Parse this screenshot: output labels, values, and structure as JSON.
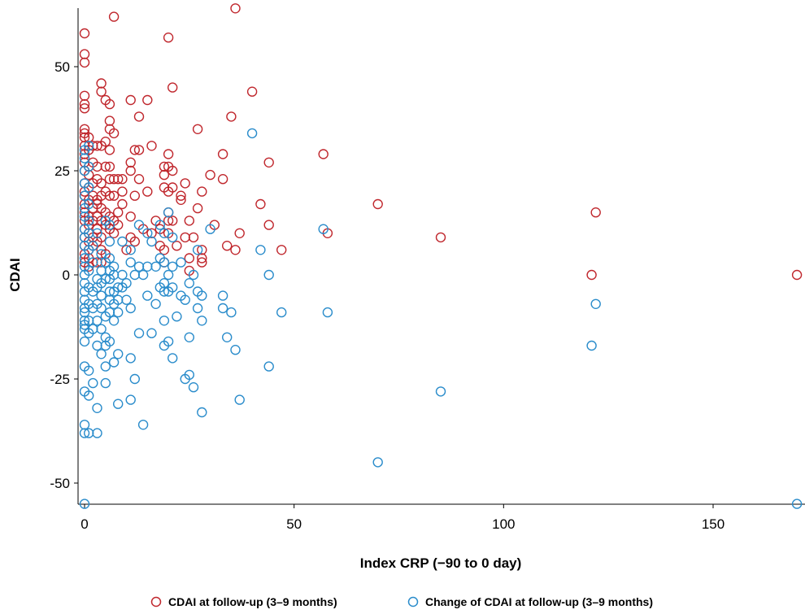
{
  "chart_data": {
    "type": "scatter",
    "title": "",
    "xlabel": "Index CRP  (−90 to 0 day)",
    "ylabel": "CDAI",
    "xlim": [
      -1,
      171
    ],
    "ylim": [
      -58,
      66
    ],
    "x_ticks": [
      0,
      50,
      100,
      150
    ],
    "y_ticks": [
      -50,
      -25,
      0,
      25,
      50
    ],
    "x_tick_labels": [
      "0",
      "50",
      "100",
      "150"
    ],
    "y_tick_labels": [
      "-50",
      "-25",
      "0",
      "25",
      "50"
    ],
    "grid": false,
    "legend_position": "bottom",
    "series": [
      {
        "name": "CDAI at follow-up (3–9 months)",
        "color": "#c0272d",
        "marker": "open-circle",
        "points": [
          [
            0,
            58
          ],
          [
            0,
            53
          ],
          [
            0,
            51
          ],
          [
            0,
            43
          ],
          [
            0,
            41
          ],
          [
            0,
            40
          ],
          [
            0,
            35
          ],
          [
            0,
            34
          ],
          [
            0,
            33
          ],
          [
            0,
            31
          ],
          [
            0,
            29
          ],
          [
            0,
            27
          ],
          [
            0,
            25
          ],
          [
            0,
            22
          ],
          [
            0,
            20
          ],
          [
            0,
            19
          ],
          [
            0,
            17
          ],
          [
            0,
            15
          ],
          [
            0,
            13
          ],
          [
            0,
            11
          ],
          [
            0,
            9
          ],
          [
            0,
            7
          ],
          [
            0,
            5
          ],
          [
            0,
            3
          ],
          [
            1,
            33
          ],
          [
            1,
            30
          ],
          [
            1,
            26
          ],
          [
            1,
            24
          ],
          [
            1,
            21
          ],
          [
            1,
            18
          ],
          [
            1,
            14
          ],
          [
            1,
            12
          ],
          [
            1,
            10
          ],
          [
            1,
            8
          ],
          [
            1,
            6
          ],
          [
            1,
            4
          ],
          [
            1,
            2
          ],
          [
            2,
            31
          ],
          [
            2,
            27
          ],
          [
            2,
            22
          ],
          [
            2,
            19
          ],
          [
            2,
            16
          ],
          [
            2,
            13
          ],
          [
            2,
            9
          ],
          [
            2,
            7
          ],
          [
            3,
            31
          ],
          [
            3,
            26
          ],
          [
            3,
            23
          ],
          [
            3,
            18
          ],
          [
            3,
            17
          ],
          [
            3,
            14
          ],
          [
            3,
            11
          ],
          [
            3,
            8
          ],
          [
            3,
            3
          ],
          [
            4,
            46
          ],
          [
            4,
            44
          ],
          [
            4,
            31
          ],
          [
            4,
            22
          ],
          [
            4,
            19
          ],
          [
            4,
            16
          ],
          [
            4,
            13
          ],
          [
            4,
            9
          ],
          [
            4,
            6
          ],
          [
            4,
            3
          ],
          [
            5,
            42
          ],
          [
            5,
            32
          ],
          [
            5,
            26
          ],
          [
            5,
            20
          ],
          [
            5,
            15
          ],
          [
            5,
            12
          ],
          [
            5,
            5
          ],
          [
            6,
            41
          ],
          [
            6,
            37
          ],
          [
            6,
            35
          ],
          [
            6,
            30
          ],
          [
            6,
            26
          ],
          [
            6,
            23
          ],
          [
            6,
            19
          ],
          [
            6,
            14
          ],
          [
            6,
            11
          ],
          [
            7,
            62
          ],
          [
            7,
            34
          ],
          [
            7,
            23
          ],
          [
            7,
            19
          ],
          [
            7,
            13
          ],
          [
            7,
            10
          ],
          [
            8,
            23
          ],
          [
            8,
            15
          ],
          [
            8,
            12
          ],
          [
            9,
            23
          ],
          [
            9,
            20
          ],
          [
            9,
            17
          ],
          [
            10,
            6
          ],
          [
            11,
            9
          ],
          [
            11,
            14
          ],
          [
            11,
            25
          ],
          [
            11,
            27
          ],
          [
            11,
            42
          ],
          [
            12,
            30
          ],
          [
            12,
            19
          ],
          [
            12,
            8
          ],
          [
            13,
            38
          ],
          [
            13,
            30
          ],
          [
            13,
            23
          ],
          [
            14,
            11
          ],
          [
            15,
            42
          ],
          [
            15,
            20
          ],
          [
            16,
            31
          ],
          [
            16,
            10
          ],
          [
            17,
            13
          ],
          [
            18,
            11
          ],
          [
            18,
            7
          ],
          [
            19,
            26
          ],
          [
            19,
            24
          ],
          [
            19,
            21
          ],
          [
            19,
            6
          ],
          [
            19,
            3
          ],
          [
            20,
            57
          ],
          [
            20,
            29
          ],
          [
            20,
            26
          ],
          [
            20,
            20
          ],
          [
            20,
            15
          ],
          [
            20,
            13
          ],
          [
            20,
            10
          ],
          [
            21,
            45
          ],
          [
            21,
            25
          ],
          [
            21,
            21
          ],
          [
            21,
            13
          ],
          [
            22,
            7
          ],
          [
            23,
            19
          ],
          [
            23,
            18
          ],
          [
            24,
            22
          ],
          [
            24,
            9
          ],
          [
            25,
            13
          ],
          [
            25,
            4
          ],
          [
            25,
            1
          ],
          [
            26,
            9
          ],
          [
            27,
            35
          ],
          [
            27,
            16
          ],
          [
            28,
            20
          ],
          [
            28,
            6
          ],
          [
            28,
            4
          ],
          [
            28,
            3
          ],
          [
            30,
            24
          ],
          [
            31,
            12
          ],
          [
            33,
            29
          ],
          [
            33,
            23
          ],
          [
            34,
            7
          ],
          [
            35,
            38
          ],
          [
            36,
            64
          ],
          [
            36,
            6
          ],
          [
            37,
            10
          ],
          [
            40,
            44
          ],
          [
            42,
            17
          ],
          [
            44,
            27
          ],
          [
            44,
            12
          ],
          [
            47,
            6
          ],
          [
            57,
            29
          ],
          [
            58,
            10
          ],
          [
            70,
            17
          ],
          [
            85,
            9
          ],
          [
            121,
            0
          ],
          [
            122,
            15
          ],
          [
            170,
            0
          ]
        ]
      },
      {
        "name": "Change of CDAI at follow-up (3–9 months)",
        "color": "#2a8ccb",
        "marker": "open-circle",
        "points": [
          [
            0,
            -55
          ],
          [
            0,
            -38
          ],
          [
            0,
            -36
          ],
          [
            0,
            -28
          ],
          [
            0,
            -22
          ],
          [
            0,
            -16
          ],
          [
            0,
            -13
          ],
          [
            0,
            -12
          ],
          [
            0,
            -11
          ],
          [
            0,
            -9
          ],
          [
            0,
            -8
          ],
          [
            0,
            -6
          ],
          [
            0,
            -4
          ],
          [
            0,
            -2
          ],
          [
            0,
            0
          ],
          [
            0,
            2
          ],
          [
            0,
            4
          ],
          [
            0,
            7
          ],
          [
            0,
            9
          ],
          [
            0,
            11
          ],
          [
            0,
            14
          ],
          [
            0,
            16
          ],
          [
            0,
            19
          ],
          [
            0,
            22
          ],
          [
            0,
            25
          ],
          [
            0,
            28
          ],
          [
            0,
            30
          ],
          [
            1,
            -38
          ],
          [
            1,
            -29
          ],
          [
            1,
            -23
          ],
          [
            1,
            -14
          ],
          [
            1,
            -11
          ],
          [
            1,
            -7
          ],
          [
            1,
            -3
          ],
          [
            1,
            1
          ],
          [
            1,
            6
          ],
          [
            1,
            10
          ],
          [
            1,
            13
          ],
          [
            1,
            17
          ],
          [
            1,
            21
          ],
          [
            1,
            26
          ],
          [
            1,
            31
          ],
          [
            2,
            -26
          ],
          [
            2,
            -13
          ],
          [
            2,
            -8
          ],
          [
            2,
            -4
          ],
          [
            2,
            3
          ],
          [
            2,
            7
          ],
          [
            3,
            -38
          ],
          [
            3,
            -32
          ],
          [
            3,
            -17
          ],
          [
            3,
            -11
          ],
          [
            3,
            -7
          ],
          [
            3,
            -3
          ],
          [
            3,
            -1
          ],
          [
            3,
            10
          ],
          [
            4,
            -19
          ],
          [
            4,
            -13
          ],
          [
            4,
            -8
          ],
          [
            4,
            -5
          ],
          [
            4,
            -2
          ],
          [
            4,
            1
          ],
          [
            4,
            5
          ],
          [
            5,
            -26
          ],
          [
            5,
            -22
          ],
          [
            5,
            -17
          ],
          [
            5,
            -15
          ],
          [
            5,
            -10
          ],
          [
            5,
            -1
          ],
          [
            5,
            3
          ],
          [
            5,
            13
          ],
          [
            6,
            -16
          ],
          [
            6,
            -9
          ],
          [
            6,
            -6
          ],
          [
            6,
            -4
          ],
          [
            6,
            -1
          ],
          [
            6,
            1
          ],
          [
            6,
            4
          ],
          [
            6,
            8
          ],
          [
            6,
            12
          ],
          [
            7,
            -21
          ],
          [
            7,
            -11
          ],
          [
            7,
            -7
          ],
          [
            7,
            -4
          ],
          [
            7,
            0
          ],
          [
            7,
            2
          ],
          [
            8,
            -31
          ],
          [
            8,
            -19
          ],
          [
            8,
            -9
          ],
          [
            8,
            -6
          ],
          [
            8,
            -3
          ],
          [
            9,
            -3
          ],
          [
            9,
            0
          ],
          [
            9,
            8
          ],
          [
            10,
            -6
          ],
          [
            10,
            -2
          ],
          [
            11,
            -30
          ],
          [
            11,
            -20
          ],
          [
            11,
            -8
          ],
          [
            11,
            3
          ],
          [
            11,
            6
          ],
          [
            12,
            -25
          ],
          [
            12,
            0
          ],
          [
            13,
            -14
          ],
          [
            13,
            2
          ],
          [
            13,
            12
          ],
          [
            14,
            -36
          ],
          [
            14,
            0
          ],
          [
            15,
            -5
          ],
          [
            15,
            2
          ],
          [
            15,
            10
          ],
          [
            16,
            -14
          ],
          [
            16,
            8
          ],
          [
            17,
            -7
          ],
          [
            17,
            2
          ],
          [
            18,
            -3
          ],
          [
            18,
            4
          ],
          [
            18,
            12
          ],
          [
            19,
            -17
          ],
          [
            19,
            -11
          ],
          [
            19,
            -4
          ],
          [
            19,
            -2
          ],
          [
            19,
            3
          ],
          [
            19,
            10
          ],
          [
            20,
            -16
          ],
          [
            20,
            -4
          ],
          [
            20,
            0
          ],
          [
            20,
            15
          ],
          [
            21,
            -20
          ],
          [
            21,
            -3
          ],
          [
            21,
            2
          ],
          [
            21,
            9
          ],
          [
            22,
            -10
          ],
          [
            23,
            -5
          ],
          [
            23,
            3
          ],
          [
            24,
            -25
          ],
          [
            24,
            -6
          ],
          [
            25,
            -24
          ],
          [
            25,
            -15
          ],
          [
            25,
            -2
          ],
          [
            26,
            -27
          ],
          [
            26,
            0
          ],
          [
            27,
            -4
          ],
          [
            27,
            -8
          ],
          [
            27,
            6
          ],
          [
            28,
            -33
          ],
          [
            28,
            -11
          ],
          [
            28,
            -5
          ],
          [
            30,
            11
          ],
          [
            33,
            -8
          ],
          [
            33,
            -5
          ],
          [
            34,
            -15
          ],
          [
            35,
            -9
          ],
          [
            36,
            -18
          ],
          [
            37,
            -30
          ],
          [
            40,
            34
          ],
          [
            42,
            6
          ],
          [
            44,
            -22
          ],
          [
            44,
            0
          ],
          [
            47,
            -9
          ],
          [
            57,
            11
          ],
          [
            58,
            -9
          ],
          [
            70,
            -45
          ],
          [
            85,
            -28
          ],
          [
            121,
            -17
          ],
          [
            122,
            -7
          ],
          [
            170,
            -55
          ]
        ]
      }
    ]
  }
}
